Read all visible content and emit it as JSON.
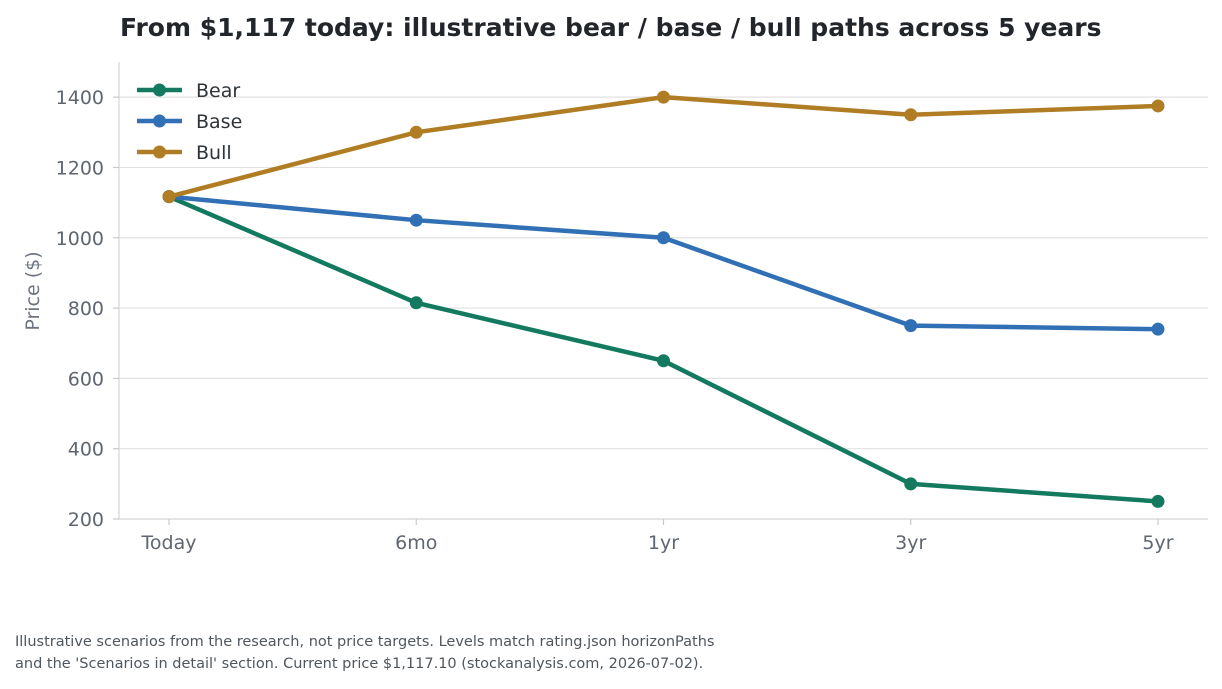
{
  "chart_data": {
    "type": "line",
    "title": "From $1,117 today: illustrative bear / base / bull paths across 5 years",
    "xlabel": "",
    "ylabel": "Price ($)",
    "categories": [
      "Today",
      "6mo",
      "1yr",
      "3yr",
      "5yr"
    ],
    "yticks": [
      200,
      400,
      600,
      800,
      1000,
      1200,
      1400
    ],
    "ylim": [
      200,
      1500
    ],
    "grid": "horizontal",
    "legend_position": "top-left",
    "series": [
      {
        "name": "Bear",
        "color": "#137a5f",
        "values": [
          1117,
          815,
          650,
          300,
          250
        ]
      },
      {
        "name": "Base",
        "color": "#3170b4",
        "values": [
          1117,
          1050,
          1000,
          750,
          740
        ]
      },
      {
        "name": "Bull",
        "color": "#b17d24",
        "values": [
          1117,
          1300,
          1400,
          1350,
          1375
        ]
      }
    ]
  },
  "footnote": {
    "line1": "Illustrative scenarios from the research, not price targets. Levels match rating.json horizonPaths",
    "line2": "and the 'Scenarios in detail' section. Current price $1,117.10 (stockanalysis.com, 2026-07-02)."
  }
}
